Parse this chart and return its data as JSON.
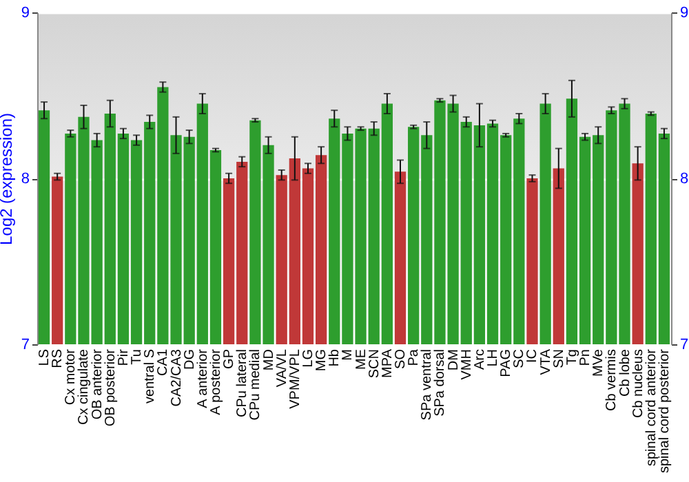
{
  "chart_data": {
    "type": "bar",
    "ylabel": "Log2 (expression)",
    "categories": [
      "LS",
      "RS",
      "Cx motor",
      "Cx cingulate",
      "OB anterior",
      "OB posterior",
      "Pir",
      "Tu",
      "ventral S",
      "CA1",
      "CA2/CA3",
      "DG",
      "A anterior",
      "A posterior",
      "GP",
      "CPu lateral",
      "CPu medial",
      "MD",
      "VA/VL",
      "VPM/VPL",
      "LG",
      "MG",
      "Hb",
      "M",
      "ME",
      "SCN",
      "MPA",
      "SO",
      "Pa",
      "SPa ventral",
      "SPa dorsal",
      "DM",
      "VMH",
      "Arc",
      "LH",
      "PAG",
      "SC",
      "IC",
      "VTA",
      "SN",
      "Tg",
      "Pn",
      "MVe",
      "Cb vermis",
      "Cb lobe",
      "Cb nucleus",
      "spinal cord anterior",
      "spinal cord posterior"
    ],
    "values": [
      8.41,
      8.01,
      8.27,
      8.37,
      8.23,
      8.39,
      8.27,
      8.23,
      8.34,
      8.55,
      8.26,
      8.25,
      8.45,
      8.17,
      8.0,
      8.1,
      8.35,
      8.2,
      8.02,
      8.12,
      8.06,
      8.14,
      8.36,
      8.27,
      8.3,
      8.3,
      8.45,
      8.04,
      8.31,
      8.26,
      8.47,
      8.45,
      8.34,
      8.32,
      8.33,
      8.26,
      8.36,
      8.0,
      8.45,
      8.06,
      8.48,
      8.25,
      8.26,
      8.41,
      8.45,
      8.09,
      8.39,
      8.27
    ],
    "errors": [
      0.05,
      0.02,
      0.02,
      0.07,
      0.04,
      0.08,
      0.03,
      0.03,
      0.04,
      0.03,
      0.11,
      0.04,
      0.06,
      0.01,
      0.03,
      0.03,
      0.01,
      0.05,
      0.03,
      0.13,
      0.03,
      0.05,
      0.05,
      0.04,
      0.01,
      0.04,
      0.06,
      0.07,
      0.01,
      0.08,
      0.01,
      0.05,
      0.03,
      0.13,
      0.02,
      0.01,
      0.03,
      0.02,
      0.06,
      0.12,
      0.11,
      0.02,
      0.05,
      0.02,
      0.03,
      0.1,
      0.01,
      0.03
    ],
    "colors": [
      "#2e9e2e",
      "#c03838",
      "#2e9e2e",
      "#2e9e2e",
      "#2e9e2e",
      "#2e9e2e",
      "#2e9e2e",
      "#2e9e2e",
      "#2e9e2e",
      "#2e9e2e",
      "#2e9e2e",
      "#2e9e2e",
      "#2e9e2e",
      "#2e9e2e",
      "#c03838",
      "#c03838",
      "#2e9e2e",
      "#2e9e2e",
      "#c03838",
      "#c03838",
      "#c03838",
      "#c03838",
      "#2e9e2e",
      "#2e9e2e",
      "#2e9e2e",
      "#2e9e2e",
      "#2e9e2e",
      "#c03838",
      "#2e9e2e",
      "#2e9e2e",
      "#2e9e2e",
      "#2e9e2e",
      "#2e9e2e",
      "#2e9e2e",
      "#2e9e2e",
      "#2e9e2e",
      "#2e9e2e",
      "#c03838",
      "#2e9e2e",
      "#c03838",
      "#2e9e2e",
      "#2e9e2e",
      "#2e9e2e",
      "#2e9e2e",
      "#2e9e2e",
      "#c03838",
      "#2e9e2e",
      "#2e9e2e"
    ],
    "ylim": [
      7,
      9
    ],
    "yticks": [
      7,
      8,
      9
    ],
    "y2lim": [
      7,
      9
    ],
    "y2ticks": [
      7,
      8,
      9
    ],
    "grid": "y"
  }
}
